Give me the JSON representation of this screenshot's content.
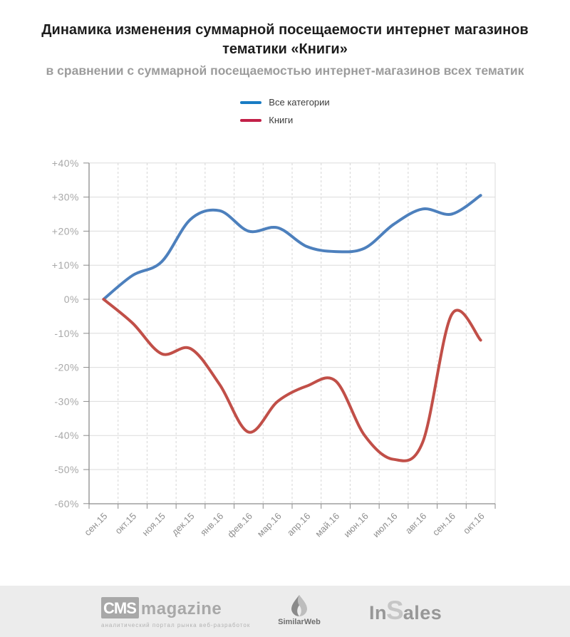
{
  "title": "Динамика изменения суммарной посещаемости интернет магазинов тематики «Книги»",
  "subtitle": "в сравнении с суммарной посещаемостью интернет-магазинов всех тематик",
  "legend": [
    {
      "label": "Все категории",
      "color": "#197cc4"
    },
    {
      "label": "Книги",
      "color": "#c32048"
    }
  ],
  "chart_data": {
    "type": "line",
    "title": "Динамика изменения суммарной посещаемости интернет магазинов тематики «Книги»",
    "subtitle": "в сравнении с суммарной посещаемостью интернет-магазинов всех тематик",
    "x": [
      "сен.15",
      "окт.15",
      "ноя.15",
      "дек.15",
      "янв.16",
      "фев.16",
      "мар.16",
      "апр.16",
      "май.16",
      "июн.16",
      "июл.16",
      "авг.16",
      "сен.16",
      "окт.16"
    ],
    "series": [
      {
        "name": "Все категории",
        "color": "#4d80bd",
        "values": [
          0,
          7,
          11,
          23.5,
          26,
          20,
          21,
          15.5,
          14,
          15,
          22,
          26.5,
          25,
          30.5
        ]
      },
      {
        "name": "Книги",
        "color": "#c14f48",
        "values": [
          0,
          -7,
          -16,
          -14.5,
          -25,
          -39,
          -30,
          -25.5,
          -24,
          -40,
          -47,
          -42,
          -4.5,
          -12
        ]
      }
    ],
    "ylim": [
      -60,
      40
    ],
    "ytick_step": 10,
    "ytick_labels": [
      "+40%",
      "+30%",
      "+20%",
      "+10%",
      "0%",
      "-10%",
      "-20%",
      "-30%",
      "-40%",
      "-50%",
      "-60%"
    ],
    "grid": true,
    "smoothed": true,
    "legend_position": "top",
    "unit": "%"
  },
  "footer": {
    "cms": {
      "box": "CMS",
      "word": "magazine",
      "tagline": "аналитический портал рынка веб-разработок"
    },
    "similarweb": {
      "label": "SimilarWeb"
    },
    "insales": {
      "in": "In",
      "s": "S",
      "ales": "ales"
    }
  }
}
